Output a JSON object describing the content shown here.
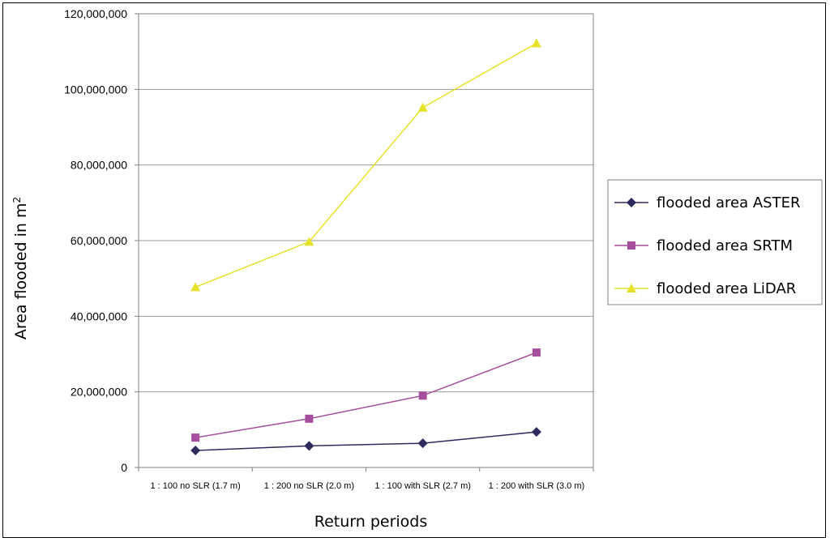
{
  "chart_data": {
    "type": "line",
    "categories": [
      "1 : 100 no SLR (1.7 m)",
      "1 : 200 no SLR (2.0 m)",
      "1 : 100 with SLR (2.7 m)",
      "1 : 200 with SLR (3.0 m)"
    ],
    "series": [
      {
        "name": "flooded area ASTER",
        "values": [
          4500000,
          5700000,
          6400000,
          9400000
        ],
        "color": "#2e2a5e",
        "marker": "diamond"
      },
      {
        "name": "flooded area SRTM",
        "values": [
          7900000,
          12900000,
          19000000,
          30400000
        ],
        "color": "#a64d9e",
        "marker": "square"
      },
      {
        "name": "flooded area LiDAR",
        "values": [
          47700000,
          59700000,
          95200000,
          112200000
        ],
        "color": "#e6e22a",
        "marker": "triangle"
      }
    ],
    "xlabel": "Return periods",
    "ylabel_main": "Area flooded in m",
    "ylabel_sup": "2",
    "ylim": [
      0,
      120000000
    ],
    "yticks": [
      "0",
      "20,000,000",
      "40,000,000",
      "60,000,000",
      "80,000,000",
      "100,000,000",
      "120,000,000"
    ],
    "grid": true,
    "legend_position": "right"
  }
}
